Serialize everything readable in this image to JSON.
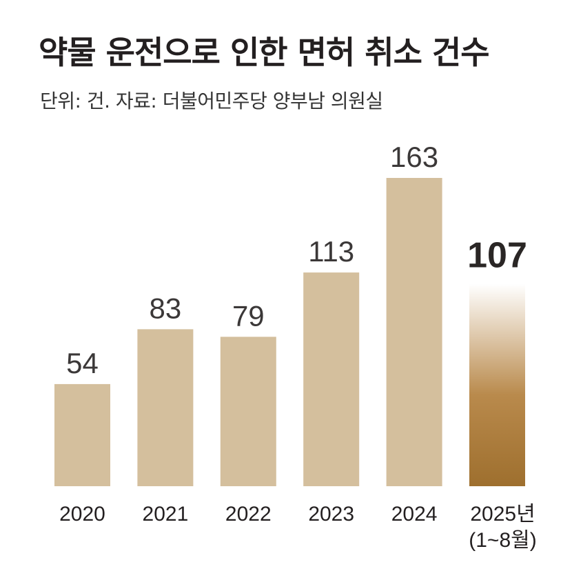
{
  "header": {
    "title": "약물 운전으로 인한 면허 취소 건수",
    "subtitle": "단위: 건. 자료: 더불어민주당 양부남 의원실"
  },
  "colors": {
    "bar": "#d4bf9d",
    "highlight_top": "#ffffff",
    "highlight_bottom": "#9e6f2e"
  },
  "chart_data": {
    "type": "bar",
    "title": "약물 운전으로 인한 면허 취소 건수",
    "subtitle": "단위: 건. 자료: 더불어민주당 양부남 의원실",
    "categories": [
      "2020",
      "2021",
      "2022",
      "2023",
      "2024",
      "2025년"
    ],
    "category_sublabels": [
      "",
      "",
      "",
      "",
      "",
      "(1~8월)"
    ],
    "values": [
      54,
      83,
      79,
      113,
      163,
      107
    ],
    "highlight_index": 5,
    "ylim": [
      0,
      170
    ],
    "grid": false,
    "legend": "none"
  }
}
